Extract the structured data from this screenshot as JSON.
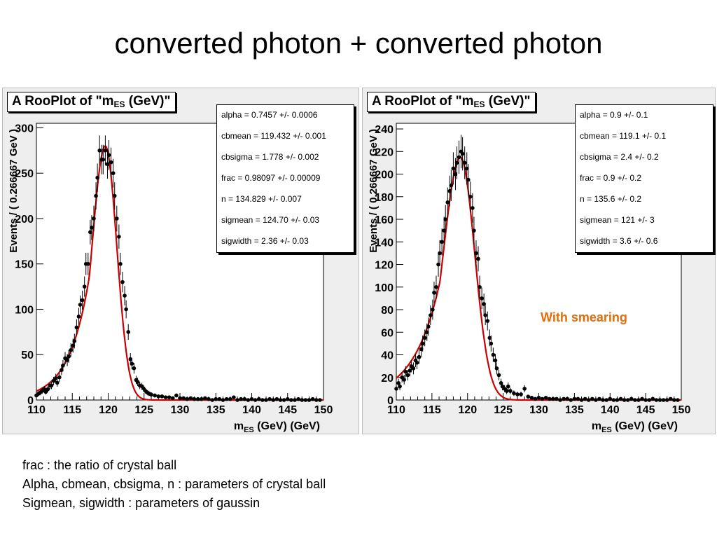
{
  "slide": {
    "title": "converted photon + converted photon",
    "annotation": "With smearing",
    "notes": [
      "frac :  the ratio of crystal ball",
      "Alpha, cbmean, cbsigma, n : parameters of crystal ball",
      "Sigmean, sigwidth : parameters of gaussin"
    ]
  },
  "colors": {
    "data_points": "#000000",
    "fit_curve": "#cc0000",
    "frame_background": "#eeeeee",
    "annotation": "#e36c09"
  },
  "chart_data": [
    {
      "type": "scatter",
      "title_prefix": "A RooPlot of \"m",
      "title_sub": "ES",
      "title_suffix": " (GeV)\"",
      "xlabel_prefix": "m",
      "xlabel_sub": "ES",
      "xlabel_suffix": " (GeV) (GeV)",
      "ylabel": "Events / ( 0.266667 GeV )",
      "xlim": [
        110,
        150
      ],
      "ylim": [
        0,
        305
      ],
      "xticks": [
        110,
        115,
        120,
        125,
        130,
        135,
        140,
        145,
        150
      ],
      "yticks": [
        0,
        50,
        100,
        150,
        200,
        250,
        300
      ],
      "stats": [
        "alpha =  0.7457 +/- 0.0006",
        "cbmean =  119.432 +/- 0.001",
        "cbsigma =  1.778 +/- 0.002",
        "frac =  0.98097 +/- 0.00009",
        "n =  134.829 +/- 0.007",
        "sigmean =  124.70 +/- 0.03",
        "sigwidth =  2.36 +/- 0.03"
      ],
      "fit": {
        "peak": 119.6,
        "amplitude": 280,
        "sigma_left": 1.85,
        "sigma_right": 1.6,
        "tail_alpha": 1.2
      },
      "points": [
        [
          110.0,
          5
        ],
        [
          110.3,
          7
        ],
        [
          110.5,
          8
        ],
        [
          110.8,
          10
        ],
        [
          111.1,
          12
        ],
        [
          111.3,
          9
        ],
        [
          111.6,
          12
        ],
        [
          111.9,
          16
        ],
        [
          112.1,
          16
        ],
        [
          112.4,
          21
        ],
        [
          112.7,
          24
        ],
        [
          112.9,
          19
        ],
        [
          113.2,
          25
        ],
        [
          113.5,
          33
        ],
        [
          113.7,
          38
        ],
        [
          114.0,
          46
        ],
        [
          114.3,
          44
        ],
        [
          114.5,
          48
        ],
        [
          114.8,
          55
        ],
        [
          115.1,
          60
        ],
        [
          115.3,
          65
        ],
        [
          115.6,
          80
        ],
        [
          115.9,
          92
        ],
        [
          116.1,
          105
        ],
        [
          116.4,
          110
        ],
        [
          116.7,
          125
        ],
        [
          116.9,
          150
        ],
        [
          117.2,
          150
        ],
        [
          117.5,
          185
        ],
        [
          117.7,
          190
        ],
        [
          118.0,
          200
        ],
        [
          118.3,
          225
        ],
        [
          118.5,
          245
        ],
        [
          118.8,
          275
        ],
        [
          119.1,
          265
        ],
        [
          119.3,
          265
        ],
        [
          119.6,
          275
        ],
        [
          119.9,
          260
        ],
        [
          120.1,
          270
        ],
        [
          120.4,
          262
        ],
        [
          120.7,
          250
        ],
        [
          120.9,
          225
        ],
        [
          121.2,
          200
        ],
        [
          121.5,
          180
        ],
        [
          121.7,
          150
        ],
        [
          122.0,
          130
        ],
        [
          122.3,
          115
        ],
        [
          122.5,
          100
        ],
        [
          122.8,
          75
        ],
        [
          123.1,
          45
        ],
        [
          123.3,
          40
        ],
        [
          123.6,
          35
        ],
        [
          123.9,
          22
        ],
        [
          124.1,
          20
        ],
        [
          124.4,
          16
        ],
        [
          124.7,
          15
        ],
        [
          124.9,
          13
        ],
        [
          125.2,
          10
        ],
        [
          125.5,
          8
        ],
        [
          125.7,
          7
        ],
        [
          126.0,
          6
        ],
        [
          126.5,
          5
        ],
        [
          127.0,
          4
        ],
        [
          127.5,
          4
        ],
        [
          128.0,
          3
        ],
        [
          128.5,
          3
        ],
        [
          129.0,
          2
        ],
        [
          129.5,
          5
        ],
        [
          130.0,
          2
        ],
        [
          130.5,
          2
        ],
        [
          131.0,
          1
        ],
        [
          131.5,
          2
        ],
        [
          132.0,
          1
        ],
        [
          132.5,
          1
        ],
        [
          133.0,
          1
        ],
        [
          133.5,
          2
        ],
        [
          134.0,
          1
        ],
        [
          134.5,
          0
        ],
        [
          135.0,
          1
        ],
        [
          135.5,
          1
        ],
        [
          136.0,
          0
        ],
        [
          136.5,
          1
        ],
        [
          137.0,
          1
        ],
        [
          137.5,
          3
        ],
        [
          138.0,
          0
        ],
        [
          138.5,
          1
        ],
        [
          139.0,
          1
        ],
        [
          139.5,
          0
        ],
        [
          140.0,
          1
        ],
        [
          140.5,
          0
        ],
        [
          141.0,
          1
        ],
        [
          141.5,
          0
        ],
        [
          142.0,
          0
        ],
        [
          142.5,
          1
        ],
        [
          143.0,
          0
        ],
        [
          143.5,
          1
        ],
        [
          144.0,
          0
        ],
        [
          144.5,
          0
        ],
        [
          145.0,
          1
        ],
        [
          145.5,
          0
        ],
        [
          146.0,
          0
        ],
        [
          146.5,
          1
        ],
        [
          147.0,
          0
        ],
        [
          147.5,
          0
        ],
        [
          148.0,
          0
        ],
        [
          148.5,
          1
        ],
        [
          149.0,
          0
        ],
        [
          149.5,
          0
        ]
      ]
    },
    {
      "type": "scatter",
      "title_prefix": "A RooPlot of \"m",
      "title_sub": "ES",
      "title_suffix": " (GeV)\"",
      "xlabel_prefix": "m",
      "xlabel_sub": "ES",
      "xlabel_suffix": " (GeV) (GeV)",
      "ylabel": "Events / ( 0.266667 GeV )",
      "xlim": [
        110,
        150
      ],
      "ylim": [
        0,
        245
      ],
      "xticks": [
        110,
        115,
        120,
        125,
        130,
        135,
        140,
        145,
        150
      ],
      "yticks": [
        0,
        20,
        40,
        60,
        80,
        100,
        120,
        140,
        160,
        180,
        200,
        220,
        240
      ],
      "stats": [
        "alpha =  0.9 +/- 0.1",
        "cbmean =  119.1 +/- 0.1",
        "cbsigma =  2.4 +/- 0.2",
        "frac =  0.9 +/- 0.2",
        "n =  135.6 +/- 0.2",
        "sigmean =  121 +/- 3",
        "sigwidth =  3.6 +/- 0.6"
      ],
      "fit": {
        "peak": 119.0,
        "amplitude": 215,
        "sigma_left": 2.4,
        "sigma_right": 2.0,
        "tail_alpha": 1.2
      },
      "points": [
        [
          110.0,
          10
        ],
        [
          110.3,
          15
        ],
        [
          110.5,
          12
        ],
        [
          110.8,
          20
        ],
        [
          111.1,
          18
        ],
        [
          111.3,
          25
        ],
        [
          111.6,
          22
        ],
        [
          111.9,
          26
        ],
        [
          112.1,
          30
        ],
        [
          112.4,
          28
        ],
        [
          112.7,
          35
        ],
        [
          112.9,
          33
        ],
        [
          113.2,
          38
        ],
        [
          113.5,
          45
        ],
        [
          113.7,
          50
        ],
        [
          114.0,
          55
        ],
        [
          114.3,
          60
        ],
        [
          114.5,
          65
        ],
        [
          114.8,
          75
        ],
        [
          115.1,
          80
        ],
        [
          115.3,
          95
        ],
        [
          115.6,
          100
        ],
        [
          115.9,
          120
        ],
        [
          116.1,
          130
        ],
        [
          116.4,
          140
        ],
        [
          116.7,
          150
        ],
        [
          116.9,
          160
        ],
        [
          117.2,
          175
        ],
        [
          117.5,
          185
        ],
        [
          117.7,
          190
        ],
        [
          118.0,
          205
        ],
        [
          118.3,
          200
        ],
        [
          118.5,
          210
        ],
        [
          118.8,
          215
        ],
        [
          119.1,
          220
        ],
        [
          119.3,
          218
        ],
        [
          119.6,
          210
        ],
        [
          119.9,
          205
        ],
        [
          120.1,
          195
        ],
        [
          120.4,
          180
        ],
        [
          120.7,
          170
        ],
        [
          120.9,
          150
        ],
        [
          121.2,
          130
        ],
        [
          121.5,
          125
        ],
        [
          121.7,
          100
        ],
        [
          122.0,
          90
        ],
        [
          122.3,
          85
        ],
        [
          122.5,
          75
        ],
        [
          122.8,
          70
        ],
        [
          123.1,
          55
        ],
        [
          123.3,
          50
        ],
        [
          123.6,
          40
        ],
        [
          123.9,
          35
        ],
        [
          124.1,
          28
        ],
        [
          124.4,
          22
        ],
        [
          124.7,
          15
        ],
        [
          124.9,
          12
        ],
        [
          125.2,
          10
        ],
        [
          125.5,
          8
        ],
        [
          125.7,
          12
        ],
        [
          126.0,
          8
        ],
        [
          126.5,
          6
        ],
        [
          127.0,
          5
        ],
        [
          127.5,
          5
        ],
        [
          128.0,
          10
        ],
        [
          128.5,
          3
        ],
        [
          129.0,
          2
        ],
        [
          129.5,
          1
        ],
        [
          130.0,
          2
        ],
        [
          130.5,
          1
        ],
        [
          131.0,
          2
        ],
        [
          131.5,
          1
        ],
        [
          132.0,
          1
        ],
        [
          132.5,
          1
        ],
        [
          133.0,
          0
        ],
        [
          133.5,
          1
        ],
        [
          134.0,
          1
        ],
        [
          134.5,
          0
        ],
        [
          135.0,
          1
        ],
        [
          135.5,
          1
        ],
        [
          136.0,
          0
        ],
        [
          136.5,
          1
        ],
        [
          137.0,
          0
        ],
        [
          137.5,
          1
        ],
        [
          138.0,
          0
        ],
        [
          138.5,
          1
        ],
        [
          139.0,
          0
        ],
        [
          139.5,
          0
        ],
        [
          140.0,
          1
        ],
        [
          140.5,
          0
        ],
        [
          141.0,
          0
        ],
        [
          141.5,
          1
        ],
        [
          142.0,
          0
        ],
        [
          142.5,
          0
        ],
        [
          143.0,
          1
        ],
        [
          143.5,
          0
        ],
        [
          144.0,
          0
        ],
        [
          144.5,
          1
        ],
        [
          145.0,
          0
        ],
        [
          145.5,
          0
        ],
        [
          146.0,
          1
        ],
        [
          146.5,
          0
        ],
        [
          147.0,
          0
        ],
        [
          147.5,
          0
        ],
        [
          148.0,
          0
        ],
        [
          148.5,
          1
        ],
        [
          149.0,
          0
        ],
        [
          149.5,
          0
        ]
      ]
    }
  ]
}
